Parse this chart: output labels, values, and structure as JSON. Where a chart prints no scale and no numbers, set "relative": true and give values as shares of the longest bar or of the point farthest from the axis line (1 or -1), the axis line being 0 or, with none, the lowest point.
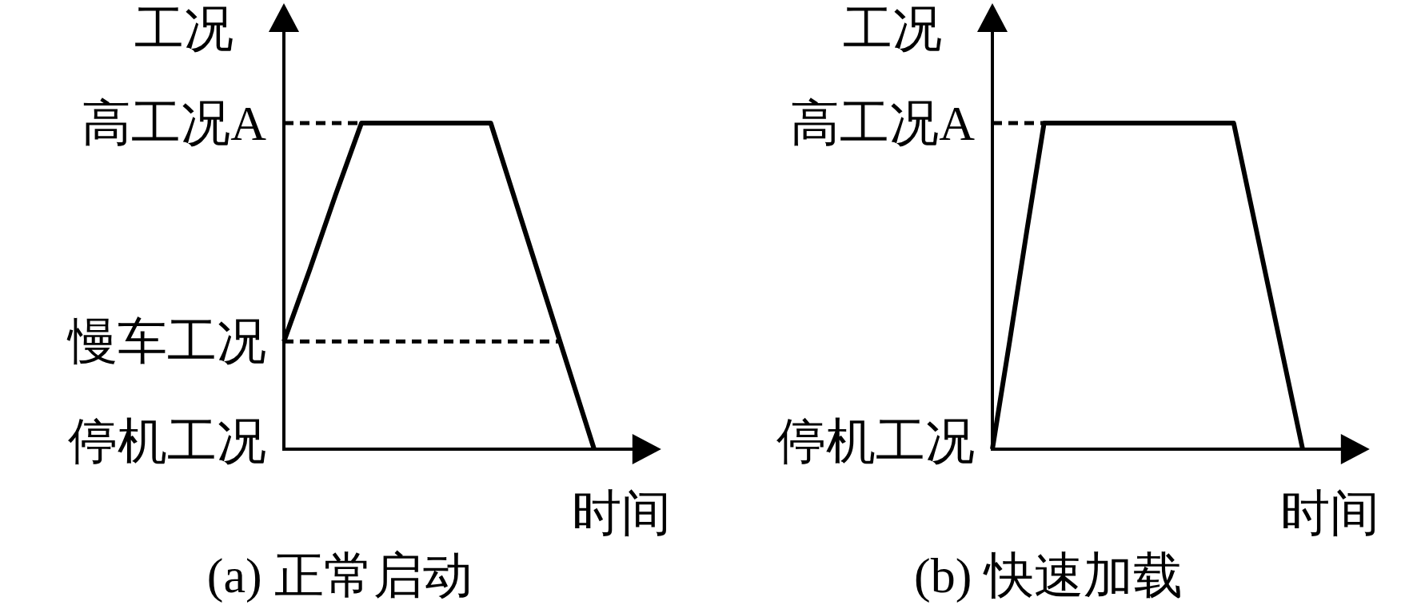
{
  "chart_data": [
    {
      "type": "line",
      "title": "(a) 正常启动",
      "xlabel": "时间",
      "ylabel": "工况",
      "relative": true,
      "categories": [
        null,
        null,
        null,
        null,
        null,
        null,
        null,
        null,
        null,
        null,
        null,
        null,
        null
      ],
      "series": [
        {
          "color": "#000000",
          "values": [
            0.33,
            0.55,
            0.78,
            1,
            1,
            1,
            1,
            1,
            1,
            0.75,
            0.5,
            0.25,
            0
          ]
        }
      ],
      "ref_lines": [
        {
          "axis": "y",
          "value": 1,
          "label": "高工况A",
          "line_style": "dashed"
        },
        {
          "axis": "y",
          "value": 0.33,
          "label": "慢车工况",
          "line_style": "dashed"
        },
        {
          "axis": "y",
          "value": 0,
          "label": "停机工况",
          "line_style": "solid"
        }
      ]
    },
    {
      "type": "line",
      "title": "(b) 快速加载",
      "xlabel": "时间",
      "ylabel": "工况",
      "relative": true,
      "categories": [
        null,
        null,
        null,
        null,
        null,
        null,
        null,
        null,
        null,
        null,
        null,
        null,
        null,
        null,
        null,
        null,
        null,
        null,
        null
      ],
      "series": [
        {
          "color": "#000000",
          "values": [
            0,
            0.33,
            0.67,
            1,
            1,
            1,
            1,
            1,
            1,
            1,
            1,
            1,
            1,
            1,
            1,
            0.75,
            0.5,
            0.25,
            0
          ]
        }
      ],
      "ref_lines": [
        {
          "axis": "y",
          "value": 1,
          "label": "高工况A",
          "line_style": "dashed"
        },
        {
          "axis": "y",
          "value": 0,
          "label": "停机工况",
          "line_style": "solid"
        }
      ]
    }
  ]
}
